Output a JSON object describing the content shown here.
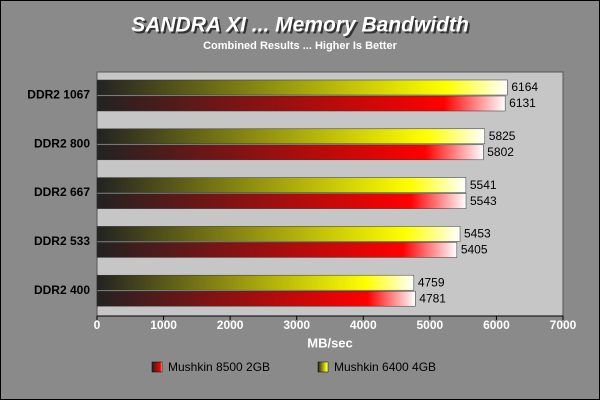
{
  "chart_data": {
    "type": "hbar",
    "title": "SANDRA XI ... Memory Bandwidth",
    "subtitle": "Combined Results ... Higher Is Better",
    "x_label": "MB/sec",
    "categories": [
      "DDR2 1067",
      "DDR2 800",
      "DDR2 667",
      "DDR2 533",
      "DDR2 400"
    ],
    "series": [
      {
        "name": "Mushkin 8500 2GB",
        "color": "#ff0000",
        "values": [
          6131,
          5802,
          5543,
          5405,
          4781
        ]
      },
      {
        "name": "Mushkin 6400 4GB",
        "color": "#ffff00",
        "values": [
          6164,
          5825,
          5541,
          5453,
          4759
        ]
      }
    ],
    "xlim": [
      0,
      7000
    ],
    "xticks": [
      0,
      1000,
      2000,
      3000,
      4000,
      5000,
      6000,
      7000
    ],
    "grid": false
  }
}
